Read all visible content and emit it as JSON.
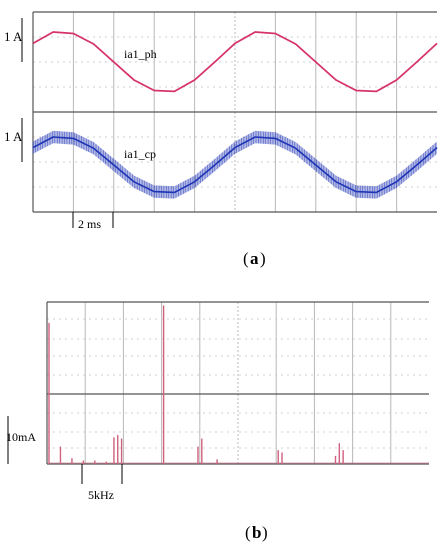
{
  "panel_a": {
    "caption_open": "(",
    "caption_letter": "a",
    "caption_close": ")",
    "scale_top": "1 A",
    "scale_bottom": "1 A",
    "time_scale": "2 ms"
  },
  "panel_b": {
    "caption_open": "(",
    "caption_letter": "b",
    "caption_close": ")",
    "scale_y": "10mA",
    "freq_scale": "5kHz"
  },
  "colors": {
    "ph": "#d6336c",
    "cp": "#1f35b5",
    "spectrum": "#d0607f",
    "grid": "#b8b8b8"
  },
  "chart_data": [
    {
      "type": "line",
      "panel": "a-top",
      "series": [
        {
          "name": "ia1_ph"
        }
      ],
      "x_unit": "ms",
      "ylabel": "1 A",
      "x": [
        0,
        1,
        2,
        3,
        4,
        5,
        6,
        7,
        8,
        9,
        10,
        11,
        12,
        13,
        14,
        15,
        16,
        17,
        18,
        19,
        20
      ],
      "values": [
        0.62,
        1.0,
        0.95,
        0.6,
        0.0,
        -0.6,
        -0.95,
        -0.98,
        -0.6,
        0.0,
        0.62,
        1.0,
        0.95,
        0.6,
        0.0,
        -0.6,
        -0.95,
        -0.98,
        -0.6,
        0.0,
        0.62
      ]
    },
    {
      "type": "line",
      "panel": "a-bottom",
      "series": [
        {
          "name": "ia1_cp"
        }
      ],
      "x_unit": "ms",
      "ylabel": "1 A",
      "x": [
        0,
        1,
        2,
        3,
        4,
        5,
        6,
        7,
        8,
        9,
        10,
        11,
        12,
        13,
        14,
        15,
        16,
        17,
        18,
        19,
        20
      ],
      "values": [
        0.62,
        1.0,
        0.95,
        0.6,
        0.0,
        -0.6,
        -0.95,
        -0.98,
        -0.6,
        0.0,
        0.62,
        1.0,
        0.95,
        0.6,
        0.0,
        -0.6,
        -0.95,
        -0.98,
        -0.6,
        0.0,
        0.62
      ],
      "ripple_band": 0.22
    },
    {
      "type": "bar",
      "panel": "b",
      "xlabel": "5kHz",
      "ylabel": "10mA",
      "x_unit": "kHz",
      "x": [
        0,
        1.5,
        3,
        4.5,
        6,
        7.5,
        8.5,
        9,
        9.5,
        15,
        19.5,
        20,
        22,
        30,
        30.5,
        37.5,
        38,
        38.5
      ],
      "values": [
        12.2,
        1.5,
        0.5,
        0.3,
        0.3,
        0.2,
        2.3,
        2.5,
        2.2,
        13.7,
        1.5,
        2.2,
        0.4,
        1.2,
        1.0,
        0.7,
        1.8,
        1.2
      ]
    }
  ]
}
